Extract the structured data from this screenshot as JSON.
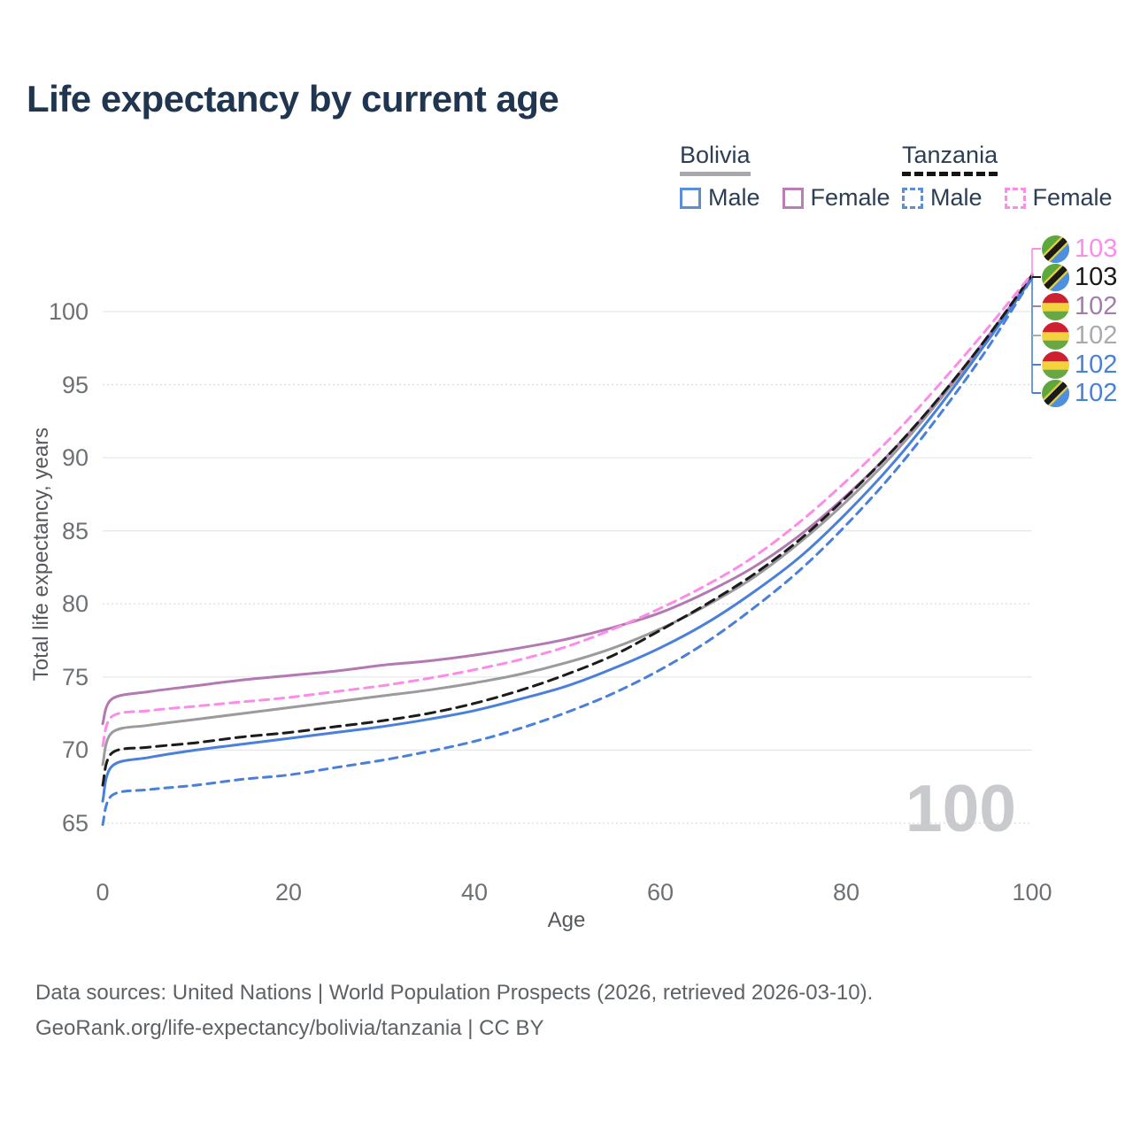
{
  "title": "Life expectancy by current age",
  "legend": {
    "groups": [
      {
        "country": "Bolivia",
        "line_style": "solid",
        "items": [
          {
            "label": "Male",
            "color": "#4a80d9"
          },
          {
            "label": "Female",
            "color": "#bb7cb8"
          }
        ]
      },
      {
        "country": "Tanzania",
        "line_style": "dashed",
        "items": [
          {
            "label": "Male",
            "color": "#4a80d9"
          },
          {
            "label": "Female",
            "color": "#fb8ce8"
          }
        ]
      }
    ]
  },
  "axes": {
    "x": {
      "label": "Age",
      "ticks": [
        0,
        20,
        40,
        60,
        80,
        100
      ],
      "range": [
        0,
        100
      ]
    },
    "y": {
      "label": "Total life expectancy, years",
      "ticks": [
        65,
        70,
        75,
        80,
        85,
        90,
        95,
        100
      ],
      "dotted_ticks": [
        65,
        80,
        95
      ],
      "range": [
        63.5,
        103
      ]
    }
  },
  "chart_data": {
    "type": "line",
    "title": "Life expectancy by current age",
    "xlabel": "Age",
    "ylabel": "Total life expectancy, years",
    "xlim": [
      0,
      100
    ],
    "ylim": [
      63.5,
      103
    ],
    "grid": true,
    "legend_position": "top-right",
    "x": [
      0,
      1,
      5,
      10,
      15,
      20,
      25,
      30,
      35,
      40,
      45,
      50,
      55,
      60,
      65,
      70,
      75,
      80,
      85,
      90,
      95,
      100
    ],
    "series": [
      {
        "name": "Bolivia",
        "color": "#9b9b9f",
        "dash": null,
        "values": [
          69.0,
          71.2,
          71.7,
          72.1,
          72.5,
          72.9,
          73.3,
          73.7,
          74.1,
          74.6,
          75.2,
          76.0,
          77.0,
          78.3,
          79.9,
          81.8,
          84.2,
          87.0,
          90.2,
          93.9,
          98.0,
          102.4
        ]
      },
      {
        "name": "Bolivia Female",
        "color": "#b279b2",
        "dash": null,
        "values": [
          71.8,
          73.5,
          74.0,
          74.4,
          74.8,
          75.1,
          75.4,
          75.8,
          76.1,
          76.5,
          77.0,
          77.6,
          78.4,
          79.4,
          80.8,
          82.5,
          84.7,
          87.4,
          90.5,
          94.1,
          98.1,
          102.4
        ]
      },
      {
        "name": "Bolivia Male",
        "color": "#4a80d9",
        "dash": null,
        "values": [
          66.5,
          68.9,
          69.5,
          70.0,
          70.4,
          70.8,
          71.2,
          71.6,
          72.1,
          72.7,
          73.5,
          74.4,
          75.6,
          77.0,
          78.7,
          80.8,
          83.2,
          86.2,
          89.6,
          93.5,
          97.8,
          102.3
        ]
      },
      {
        "name": "Tanzania",
        "color": "#1b1b1b",
        "dash": "11 7",
        "values": [
          67.6,
          69.8,
          70.2,
          70.5,
          70.9,
          71.2,
          71.6,
          72.0,
          72.5,
          73.2,
          74.1,
          75.2,
          76.5,
          78.2,
          80.0,
          82.0,
          84.4,
          87.3,
          90.5,
          94.1,
          98.1,
          102.5
        ]
      },
      {
        "name": "Tanzania Female",
        "color": "#fb8ce8",
        "dash": "10 7",
        "values": [
          70.3,
          72.3,
          72.7,
          73.0,
          73.3,
          73.6,
          74.0,
          74.4,
          74.9,
          75.5,
          76.2,
          77.1,
          78.3,
          79.7,
          81.3,
          83.2,
          85.6,
          88.4,
          91.5,
          95.0,
          98.7,
          102.6
        ]
      },
      {
        "name": "Tanzania Male",
        "color": "#4a80d9",
        "dash": "9 7",
        "values": [
          64.9,
          66.9,
          67.3,
          67.6,
          68.0,
          68.3,
          68.8,
          69.3,
          69.9,
          70.6,
          71.5,
          72.6,
          73.9,
          75.5,
          77.4,
          79.7,
          82.3,
          85.4,
          88.9,
          92.9,
          97.3,
          102.3
        ]
      }
    ]
  },
  "right_labels": [
    {
      "flag": "tanzania",
      "value": "103",
      "color": "#fb8ce8",
      "series": "Tanzania Female"
    },
    {
      "flag": "tanzania",
      "value": "103",
      "color": "#1a1a1a",
      "series": "Tanzania"
    },
    {
      "flag": "bolivia",
      "value": "102",
      "color": "#a27daa",
      "series": "Bolivia Female"
    },
    {
      "flag": "bolivia",
      "value": "102",
      "color": "#a8aaad",
      "series": "Bolivia"
    },
    {
      "flag": "bolivia",
      "value": "102",
      "color": "#4a80d9",
      "series": "Bolivia Male"
    },
    {
      "flag": "tanzania",
      "value": "102",
      "color": "#4a80d9",
      "series": "Tanzania Male"
    }
  ],
  "watermark": "100",
  "footer": {
    "line1": "Data sources: United Nations | World Population Prospects (2026, retrieved 2026-03-10).",
    "line2": "GeoRank.org/life-expectancy/bolivia/tanzania | CC BY"
  },
  "colors": {
    "title": "#1f3550",
    "tick_text": "#6d7176",
    "axis_title": "#55585d",
    "gridline": "#e7e8ea",
    "watermark": "#c8cacd",
    "footer": "#5d6267"
  }
}
